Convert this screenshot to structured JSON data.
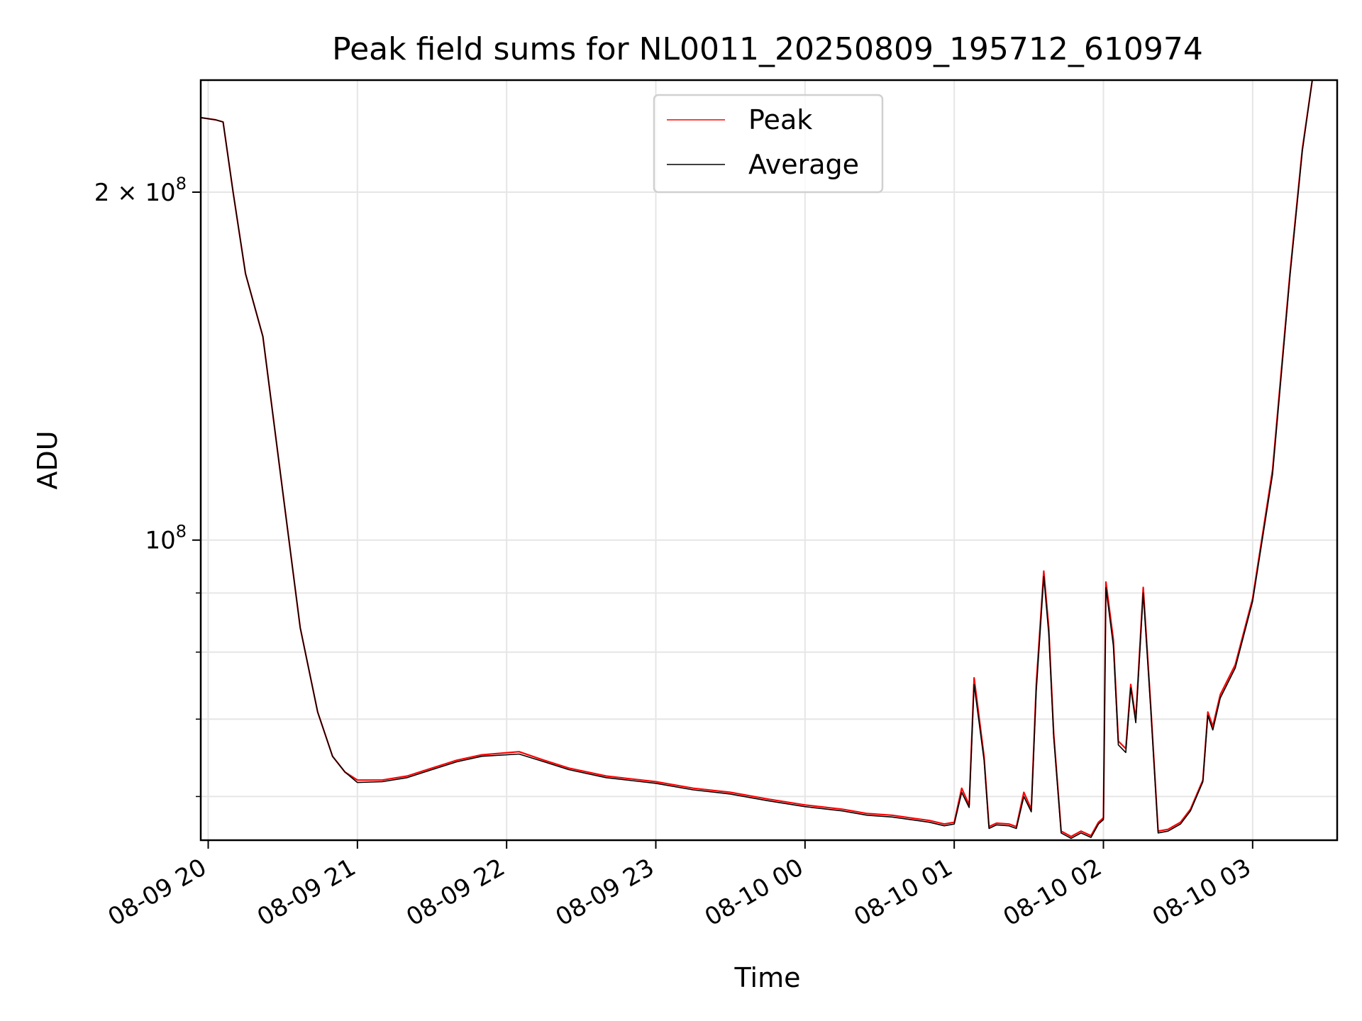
{
  "chart_data": {
    "type": "line",
    "title": "Peak field sums for NL0011_20250809_195712_610974",
    "xlabel": "Time",
    "ylabel": "ADU",
    "y_scale": "log",
    "ylim": [
      55000000,
      250000000
    ],
    "xlim": [
      "2025-08-09 19:57",
      "2025-08-10 03:34"
    ],
    "grid": true,
    "legend_placement": "upper center",
    "x_ticks": [
      {
        "time": "2025-08-09 20:00",
        "label": "08-09 20"
      },
      {
        "time": "2025-08-09 21:00",
        "label": "08-09 21"
      },
      {
        "time": "2025-08-09 22:00",
        "label": "08-09 22"
      },
      {
        "time": "2025-08-09 23:00",
        "label": "08-09 23"
      },
      {
        "time": "2025-08-10 00:00",
        "label": "08-10 00"
      },
      {
        "time": "2025-08-10 01:00",
        "label": "08-10 01"
      },
      {
        "time": "2025-08-10 02:00",
        "label": "08-10 02"
      },
      {
        "time": "2025-08-10 03:00",
        "label": "08-10 03"
      }
    ],
    "y_ticks": [
      {
        "value": 100000000,
        "label_base": "10",
        "label_exp": "8",
        "label_mult": ""
      },
      {
        "value": 200000000,
        "label_base": "10",
        "label_exp": "8",
        "label_mult": "2 × "
      }
    ],
    "y_minor_ticks": [
      60000000,
      70000000,
      80000000,
      90000000
    ],
    "x": [
      "2025-08-09 19:57",
      "2025-08-09 20:03",
      "2025-08-09 20:06",
      "2025-08-09 20:10",
      "2025-08-09 20:15",
      "2025-08-09 20:22",
      "2025-08-09 20:30",
      "2025-08-09 20:37",
      "2025-08-09 20:44",
      "2025-08-09 20:50",
      "2025-08-09 20:55",
      "2025-08-09 21:00",
      "2025-08-09 21:10",
      "2025-08-09 21:20",
      "2025-08-09 21:30",
      "2025-08-09 21:40",
      "2025-08-09 21:50",
      "2025-08-09 22:05",
      "2025-08-09 22:15",
      "2025-08-09 22:25",
      "2025-08-09 22:40",
      "2025-08-09 23:00",
      "2025-08-09 23:15",
      "2025-08-09 23:30",
      "2025-08-09 23:45",
      "2025-08-10 00:00",
      "2025-08-10 00:15",
      "2025-08-10 00:25",
      "2025-08-10 00:35",
      "2025-08-10 00:45",
      "2025-08-10 00:50",
      "2025-08-10 00:53",
      "2025-08-10 00:56",
      "2025-08-10 01:00",
      "2025-08-10 01:03",
      "2025-08-10 01:06",
      "2025-08-10 01:08",
      "2025-08-10 01:12",
      "2025-08-10 01:14",
      "2025-08-10 01:17",
      "2025-08-10 01:22",
      "2025-08-10 01:25",
      "2025-08-10 01:28",
      "2025-08-10 01:31",
      "2025-08-10 01:33",
      "2025-08-10 01:36",
      "2025-08-10 01:38",
      "2025-08-10 01:40",
      "2025-08-10 01:43",
      "2025-08-10 01:47",
      "2025-08-10 01:51",
      "2025-08-10 01:55",
      "2025-08-10 01:58",
      "2025-08-10 02:00",
      "2025-08-10 02:01",
      "2025-08-10 02:04",
      "2025-08-10 02:06",
      "2025-08-10 02:09",
      "2025-08-10 02:11",
      "2025-08-10 02:13",
      "2025-08-10 02:16",
      "2025-08-10 02:19",
      "2025-08-10 02:22",
      "2025-08-10 02:26",
      "2025-08-10 02:31",
      "2025-08-10 02:35",
      "2025-08-10 02:40",
      "2025-08-10 02:42",
      "2025-08-10 02:44",
      "2025-08-10 02:47",
      "2025-08-10 02:53",
      "2025-08-10 03:00",
      "2025-08-10 03:08",
      "2025-08-10 03:15",
      "2025-08-10 03:20",
      "2025-08-10 03:24"
    ],
    "series": [
      {
        "name": "Peak",
        "color": "#ff0000",
        "values": [
          232000000,
          231000000,
          230000000,
          200000000,
          170000000,
          150000000,
          110000000,
          84000000,
          71000000,
          65000000,
          63000000,
          62000000,
          62000000,
          62500000,
          63500000,
          64500000,
          65200000,
          65600000,
          64500000,
          63500000,
          62500000,
          61800000,
          61000000,
          60500000,
          59700000,
          59000000,
          58500000,
          58000000,
          57800000,
          57400000,
          57200000,
          57000000,
          56800000,
          57000000,
          61000000,
          59000000,
          76000000,
          65000000,
          56500000,
          56900000,
          56800000,
          56500000,
          60500000,
          58500000,
          75000000,
          94000000,
          84000000,
          68000000,
          56000000,
          55400000,
          56000000,
          55500000,
          57000000,
          57500000,
          92000000,
          82000000,
          67000000,
          66000000,
          75000000,
          70000000,
          91000000,
          72000000,
          56000000,
          56200000,
          57000000,
          58500000,
          62000000,
          71000000,
          69000000,
          73500000,
          78000000,
          89000000,
          115000000,
          170000000,
          218000000,
          250000000
        ]
      },
      {
        "name": "Average",
        "color": "#000000",
        "values": [
          232000000,
          231000000,
          230000000,
          200000000,
          170000000,
          150000000,
          110000000,
          84000000,
          71000000,
          65000000,
          63000000,
          61700000,
          61800000,
          62300000,
          63300000,
          64300000,
          65000000,
          65300000,
          64300000,
          63300000,
          62300000,
          61600000,
          60800000,
          60300000,
          59500000,
          58800000,
          58300000,
          57800000,
          57600000,
          57200000,
          57000000,
          56800000,
          56600000,
          56800000,
          60500000,
          58700000,
          75000000,
          64500000,
          56300000,
          56700000,
          56600000,
          56300000,
          60000000,
          58200000,
          74000000,
          93000000,
          83000000,
          67500000,
          55800000,
          55200000,
          55800000,
          55300000,
          56800000,
          57300000,
          91000000,
          81000000,
          66500000,
          65500000,
          74500000,
          69500000,
          90000000,
          71500000,
          55800000,
          56000000,
          56800000,
          58300000,
          61800000,
          70500000,
          68500000,
          73000000,
          77500000,
          88500000,
          114000000,
          169000000,
          217000000,
          250000000
        ]
      }
    ]
  }
}
